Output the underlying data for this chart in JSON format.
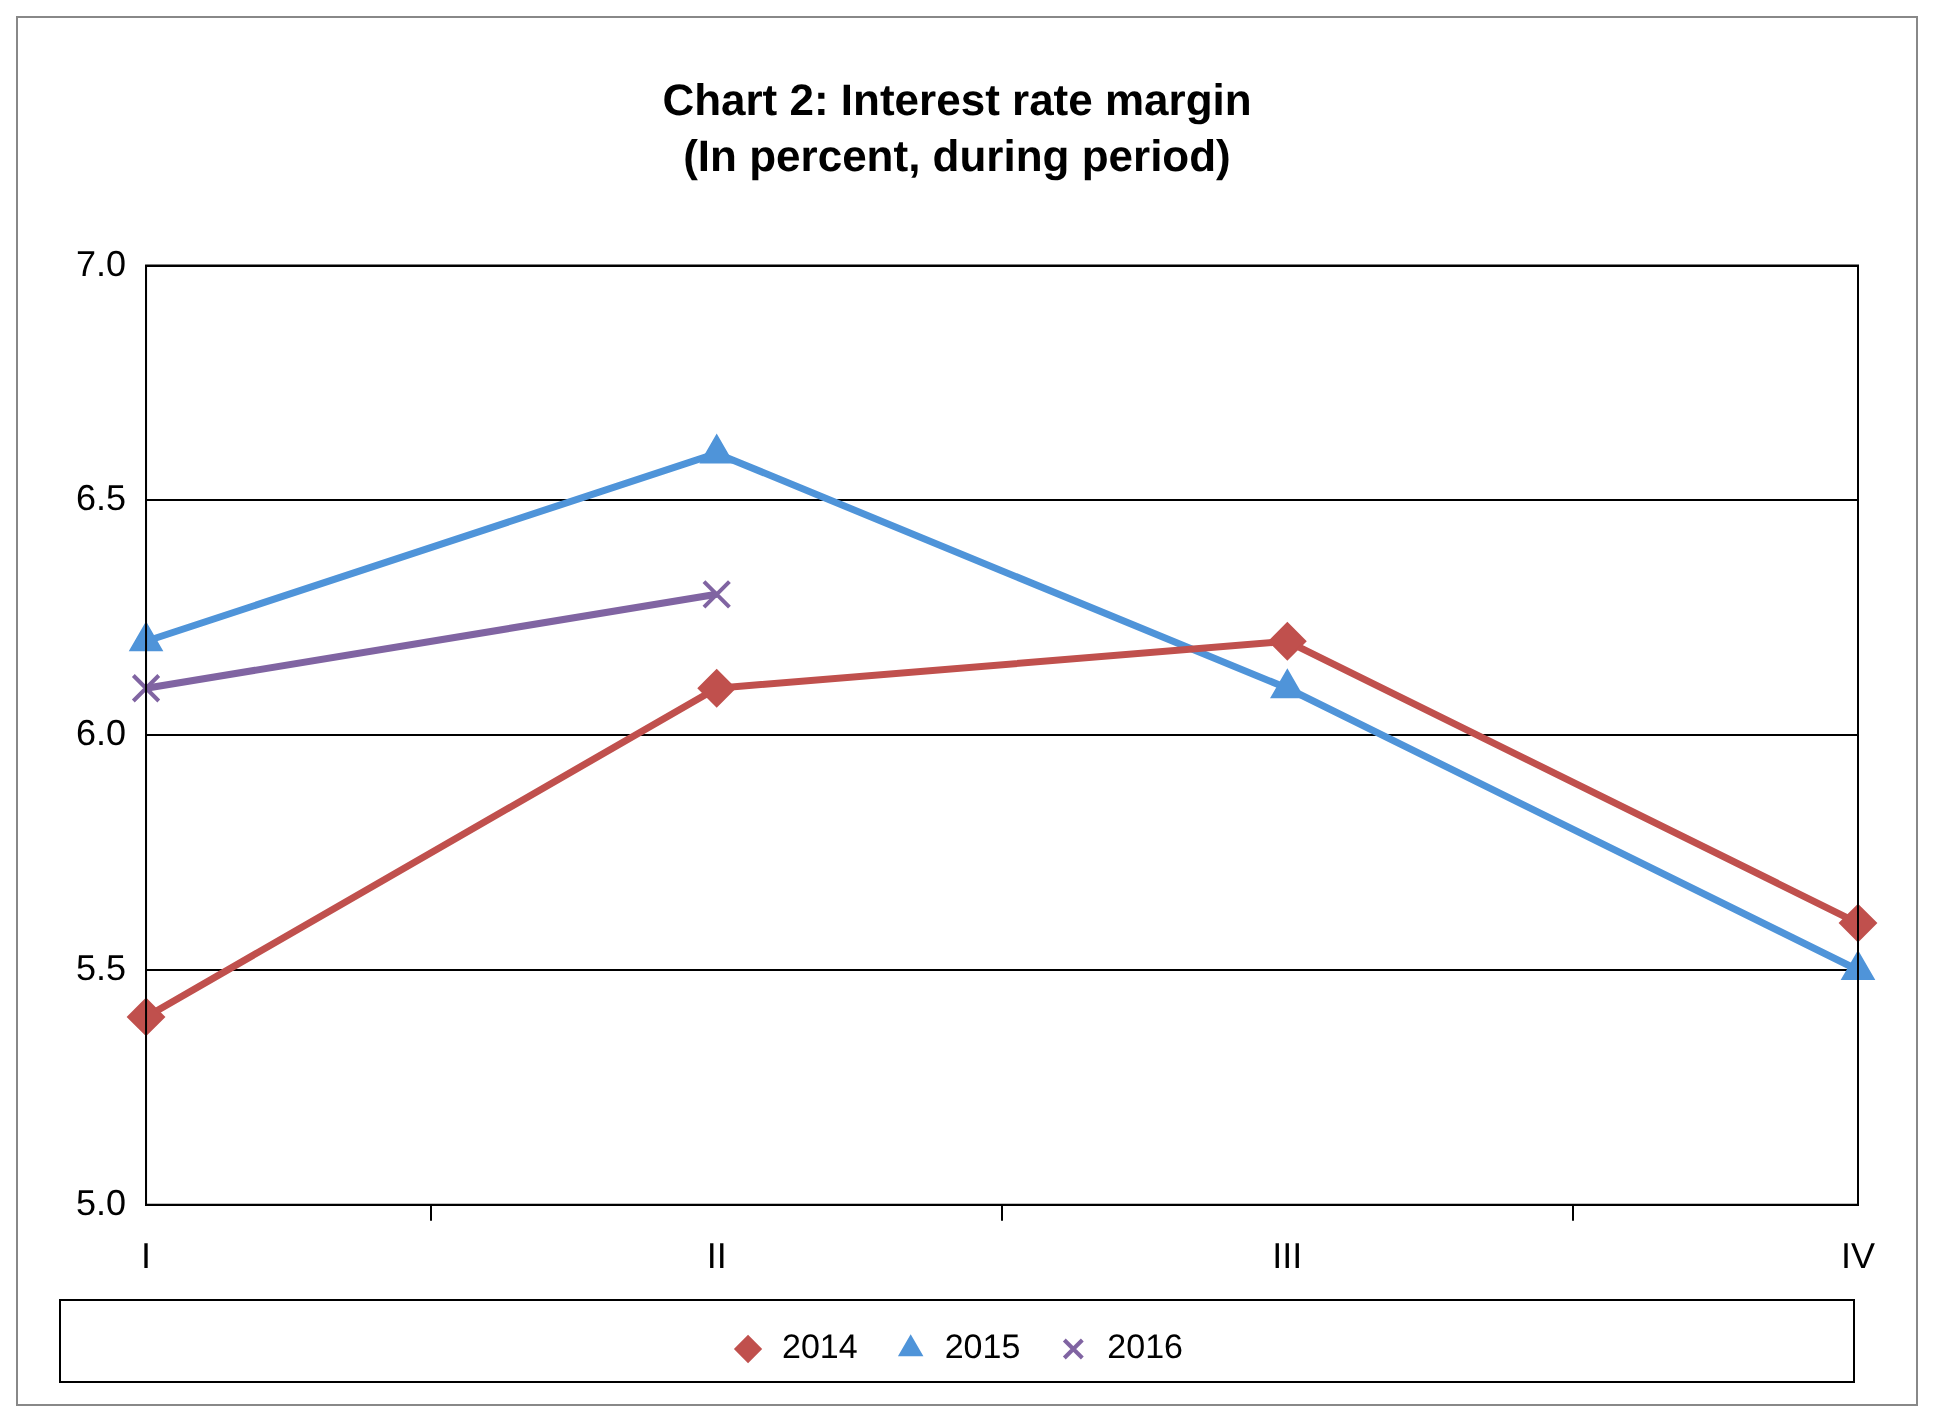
{
  "chart_data": {
    "type": "line",
    "title": "Chart 2: Interest rate margin",
    "subtitle": "(In percent, during period)",
    "categories": [
      "I",
      "II",
      "III",
      "IV"
    ],
    "series": [
      {
        "name": "2014",
        "color": "#c0504d",
        "marker": "diamond",
        "values": [
          5.4,
          6.1,
          6.2,
          5.6
        ]
      },
      {
        "name": "2015",
        "color": "#4f94d9",
        "marker": "triangle",
        "values": [
          6.2,
          6.6,
          6.1,
          5.5
        ]
      },
      {
        "name": "2016",
        "color": "#8064a2",
        "marker": "cross",
        "values": [
          6.1,
          6.3,
          null,
          null
        ]
      }
    ],
    "ylim": [
      5,
      7
    ],
    "yticks": [
      {
        "value": 5,
        "label": "5.0"
      },
      {
        "value": 5.5,
        "label": "5.5"
      },
      {
        "value": 6,
        "label": "6.0"
      },
      {
        "value": 6.5,
        "label": "6.5"
      },
      {
        "value": 7,
        "label": "7.0"
      }
    ],
    "grid": "y",
    "legend": "bottom",
    "line_style": "solid"
  }
}
